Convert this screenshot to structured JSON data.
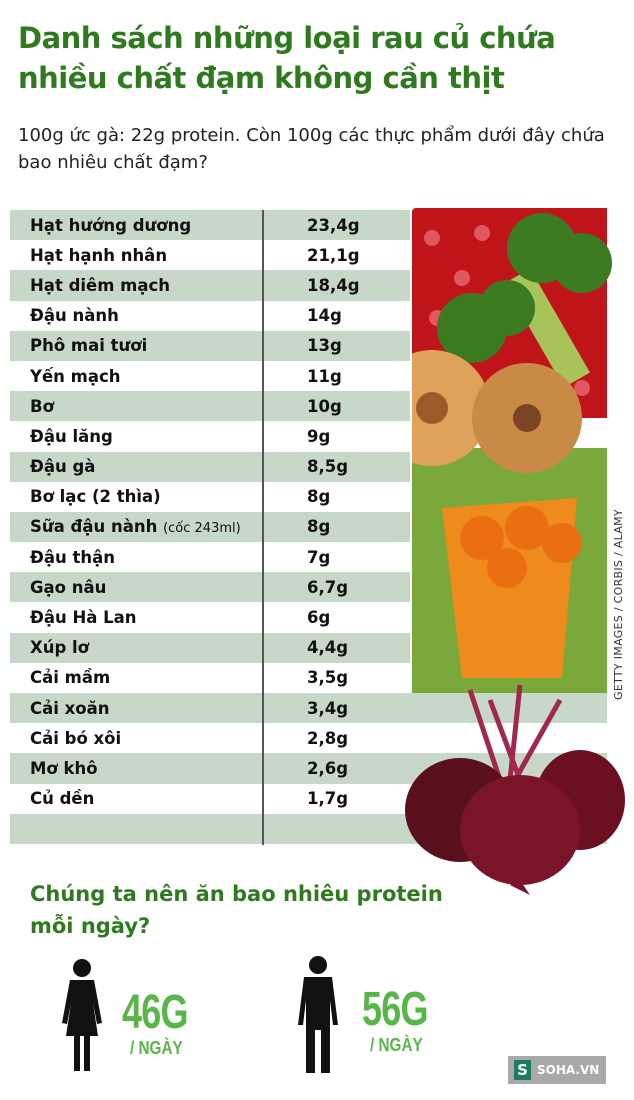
{
  "title": "Danh sách những loại rau củ chứa nhiều chất đạm không cần thịt",
  "subtitle": "100g ức gà: 22g protein. Còn 100g các thực phẩm dưới đây chứa bao nhiêu chất đạm?",
  "table": [
    {
      "name": "Hạt hướng dương",
      "note": "",
      "value": "23,4g"
    },
    {
      "name": "Hạt hạnh nhân",
      "note": "",
      "value": "21,1g"
    },
    {
      "name": "Hạt diêm mạch",
      "note": "",
      "value": "18,4g"
    },
    {
      "name": "Đậu nành",
      "note": "",
      "value": "14g"
    },
    {
      "name": "Phô mai tươi",
      "note": "",
      "value": "13g"
    },
    {
      "name": "Yến mạch",
      "note": "",
      "value": "11g"
    },
    {
      "name": "Bơ",
      "note": "",
      "value": "10g"
    },
    {
      "name": "Đậu lăng",
      "note": "",
      "value": "9g"
    },
    {
      "name": "Đậu gà",
      "note": "",
      "value": "8,5g"
    },
    {
      "name": "Bơ lạc (2 thìa)",
      "note": "",
      "value": "8g"
    },
    {
      "name": "Sữa đậu nành",
      "note": "(cốc 243ml)",
      "value": "8g"
    },
    {
      "name": "Đậu thận",
      "note": "",
      "value": "7g"
    },
    {
      "name": "Gạo nâu",
      "note": "",
      "value": "6,7g"
    },
    {
      "name": "Đậu Hà Lan",
      "note": "",
      "value": "6g"
    },
    {
      "name": "Xúp lơ",
      "note": "",
      "value": "4,4g"
    },
    {
      "name": "Cải mầm",
      "note": "",
      "value": "3,5g"
    },
    {
      "name": "Cải xoăn",
      "note": "",
      "value": "3,4g"
    },
    {
      "name": "Cải bó xôi",
      "note": "",
      "value": "2,8g"
    },
    {
      "name": "Mơ khô",
      "note": "",
      "value": "2,6g"
    },
    {
      "name": "Củ dền",
      "note": "",
      "value": "1,7g"
    },
    {
      "name": "",
      "note": "",
      "value": ""
    }
  ],
  "photo_credit": "GETTY IMAGES / CORBIS / ALAMY",
  "question": "Chúng ta nên ăn bao nhiêu protein mỗi ngày?",
  "women": {
    "amount": "46G",
    "unit": "/ NGÀY",
    "icon": "woman-icon"
  },
  "men": {
    "amount": "56G",
    "unit": "/ NGÀY",
    "icon": "man-icon"
  },
  "logo": {
    "mark": "S",
    "text": "SOHA.VN"
  },
  "colors": {
    "title": "#2f7a1f",
    "row_alt": "#c8d8c8",
    "amount": "#58b548"
  }
}
